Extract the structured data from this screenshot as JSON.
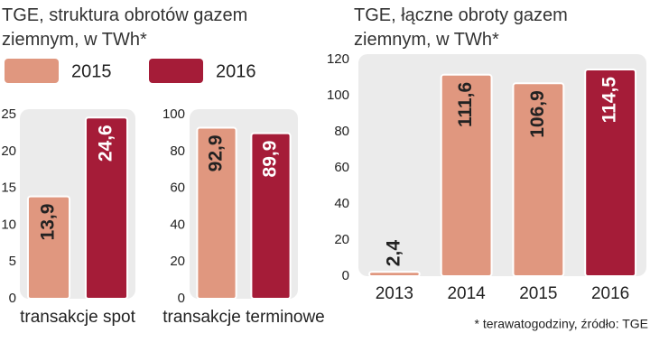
{
  "chart_data": [
    {
      "type": "bar",
      "title": "TGE, struktura obrotów gazem ziemnym, w TWh*",
      "categories": [
        "transakcje spot"
      ],
      "series": [
        {
          "name": "2015",
          "color": "#e0977f",
          "values": [
            13.9
          ],
          "value_labels": [
            "13,9"
          ]
        },
        {
          "name": "2016",
          "color": "#a51c38",
          "values": [
            24.6
          ],
          "value_labels": [
            "24,6"
          ]
        }
      ],
      "ylim": [
        0,
        25
      ],
      "yticks": [
        0,
        5,
        10,
        15,
        20,
        25
      ]
    },
    {
      "type": "bar",
      "categories": [
        "transakcje terminowe"
      ],
      "series": [
        {
          "color": "#e0977f",
          "values": [
            92.9
          ],
          "value_labels": [
            "92,9"
          ]
        },
        {
          "color": "#a51c38",
          "values": [
            89.9
          ],
          "value_labels": [
            "89,9"
          ]
        }
      ],
      "ylim": [
        0,
        100
      ],
      "yticks": [
        0,
        20,
        40,
        60,
        80,
        100
      ]
    },
    {
      "type": "bar",
      "title": "TGE, łączne obroty gazem ziemnym, w TWh*",
      "categories": [
        "2013",
        "2014",
        "2015",
        "2016"
      ],
      "values": [
        2.4,
        111.6,
        106.9,
        114.5
      ],
      "value_labels": [
        "2,4",
        "111,6",
        "106,9",
        "114,5"
      ],
      "colors": [
        "#e0977f",
        "#e0977f",
        "#e0977f",
        "#a51c38"
      ],
      "ylim": [
        0,
        120
      ],
      "yticks": [
        0,
        20,
        40,
        60,
        80,
        100,
        120
      ],
      "note": "* terawatogodziny, źródło: TGE"
    }
  ]
}
